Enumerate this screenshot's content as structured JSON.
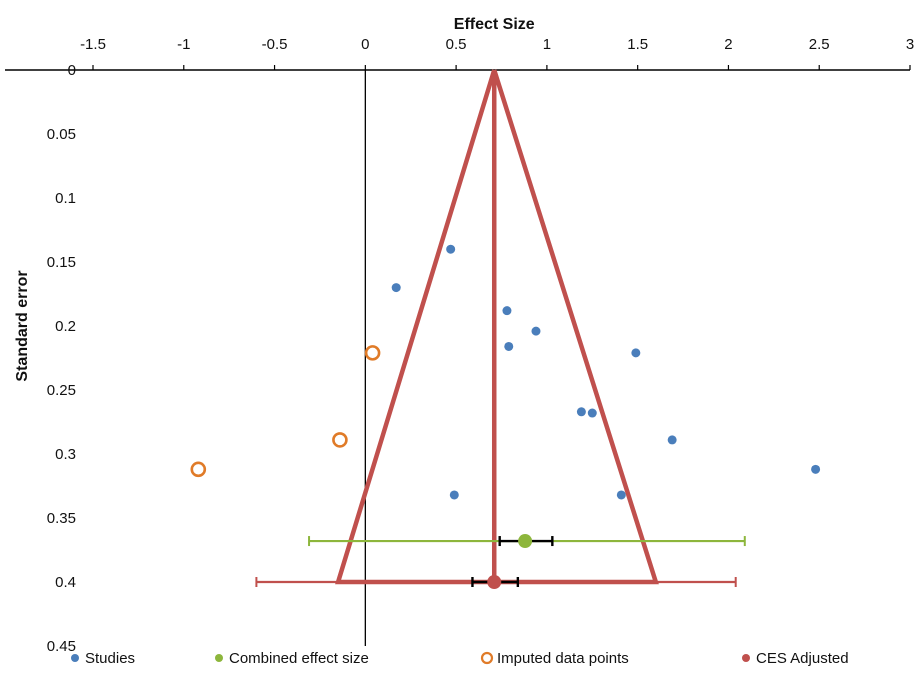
{
  "chart_data": {
    "type": "scatter",
    "title": "",
    "xlabel": "Effect Size",
    "ylabel": "Standard error",
    "xlim": [
      -1.5,
      3
    ],
    "ylim": [
      0,
      0.45
    ],
    "y_inverted": true,
    "x_axis_position": "top",
    "grid": false,
    "x_ticks": [
      "-1.5",
      "-1",
      "-0.5",
      "0",
      "0.5",
      "1",
      "1.5",
      "2",
      "2.5",
      "3"
    ],
    "x_tick_values": [
      -1.5,
      -1,
      -0.5,
      0,
      0.5,
      1,
      1.5,
      2,
      2.5,
      3
    ],
    "y_ticks": [
      "0",
      "0.05",
      "0.1",
      "0.15",
      "0.2",
      "0.25",
      "0.3",
      "0.35",
      "0.4",
      "0.45"
    ],
    "y_tick_values": [
      0,
      0.05,
      0.1,
      0.15,
      0.2,
      0.25,
      0.3,
      0.35,
      0.4,
      0.45
    ],
    "legend_position": "bottom",
    "colors": {
      "studies": "#4a7ebb",
      "combined": "#8db63c",
      "imputed": "#e07b28",
      "adjusted": "#c0504d",
      "error_bar_inner": "#000000"
    },
    "series": [
      {
        "name": "Studies",
        "points": [
          {
            "x": 0.47,
            "y": 0.14
          },
          {
            "x": 0.17,
            "y": 0.17
          },
          {
            "x": 0.78,
            "y": 0.188
          },
          {
            "x": 0.94,
            "y": 0.204
          },
          {
            "x": 0.79,
            "y": 0.216
          },
          {
            "x": 1.49,
            "y": 0.221
          },
          {
            "x": 1.19,
            "y": 0.267
          },
          {
            "x": 1.25,
            "y": 0.268
          },
          {
            "x": 1.69,
            "y": 0.289
          },
          {
            "x": 2.48,
            "y": 0.312
          },
          {
            "x": 0.49,
            "y": 0.332
          },
          {
            "x": 1.41,
            "y": 0.332
          }
        ]
      },
      {
        "name": "Combined effect size",
        "point": {
          "x": 0.88,
          "y": 0.368
        },
        "ci_outer": [
          -0.31,
          2.09
        ],
        "ci_inner": [
          0.74,
          1.03
        ]
      },
      {
        "name": "Imputed data points",
        "points": [
          {
            "x": 0.04,
            "y": 0.221
          },
          {
            "x": -0.14,
            "y": 0.289
          },
          {
            "x": -0.92,
            "y": 0.312
          }
        ]
      },
      {
        "name": "CES Adjusted",
        "point": {
          "x": 0.71,
          "y": 0.4
        },
        "ci_outer": [
          -0.6,
          2.04
        ],
        "ci_inner": [
          0.59,
          0.84
        ],
        "funnel": [
          {
            "x": 0.71,
            "y": 0
          },
          {
            "x": -0.15,
            "y": 0.4
          },
          {
            "x": 1.6,
            "y": 0.4
          }
        ],
        "vertical_line": {
          "x": 0.71,
          "y_from": 0,
          "y_to": 0.4
        }
      }
    ],
    "reference_line": {
      "x": 0,
      "y_from": 0,
      "y_to": 0.45
    }
  },
  "legend": {
    "items": [
      {
        "label": "Studies",
        "key": "studies"
      },
      {
        "label": "Combined effect size",
        "key": "combined"
      },
      {
        "label": "Imputed data points",
        "key": "imputed"
      },
      {
        "label": "CES Adjusted",
        "key": "adjusted"
      }
    ]
  }
}
